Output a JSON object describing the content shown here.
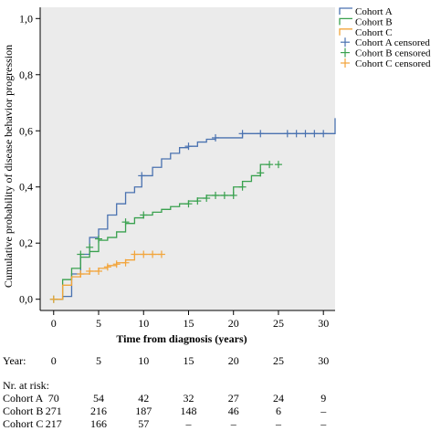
{
  "chart_data": {
    "type": "line",
    "subtype": "kaplan-meier step curve",
    "title": "",
    "xlabel": "Time from diagnosis (years)",
    "ylabel": "Cumulative probability of disease behavior progression",
    "xlim": [
      -1.5,
      31.3
    ],
    "ylim": [
      -0.04,
      1.04
    ],
    "x_ticks": [
      0,
      5,
      10,
      15,
      20,
      25,
      30
    ],
    "y_ticks": [
      "0,0",
      "0,2",
      "0,4",
      "0,6",
      "0,8",
      "1,0"
    ],
    "y_tick_values": [
      0.0,
      0.2,
      0.4,
      0.6,
      0.8,
      1.0
    ],
    "plot_background": "#ebebeb",
    "grid": false,
    "legend_position": "top-right-outside",
    "legend": [
      {
        "label": "Cohort A",
        "kind": "line",
        "color": "#4a72b0"
      },
      {
        "label": "Cohort B",
        "kind": "line",
        "color": "#3aa14f"
      },
      {
        "label": "Cohort C",
        "kind": "line",
        "color": "#f2a43a"
      },
      {
        "label": "Cohort A censored",
        "kind": "cross",
        "color": "#4a72b0"
      },
      {
        "label": "Cohort B censored",
        "kind": "cross",
        "color": "#3aa14f"
      },
      {
        "label": "Cohort C censored",
        "kind": "cross",
        "color": "#f2a43a"
      }
    ],
    "series": [
      {
        "name": "Cohort A",
        "color": "#4a72b0",
        "steps": [
          [
            0,
            0
          ],
          [
            1,
            0.01
          ],
          [
            2,
            0.09
          ],
          [
            3,
            0.16
          ],
          [
            4,
            0.22
          ],
          [
            5,
            0.25
          ],
          [
            6,
            0.3
          ],
          [
            7,
            0.34
          ],
          [
            8,
            0.38
          ],
          [
            9,
            0.4
          ],
          [
            9.8,
            0.44
          ],
          [
            11,
            0.47
          ],
          [
            12,
            0.5
          ],
          [
            13,
            0.52
          ],
          [
            14,
            0.54
          ],
          [
            15,
            0.545
          ],
          [
            16,
            0.56
          ],
          [
            17,
            0.57
          ],
          [
            18,
            0.575
          ],
          [
            21,
            0.59
          ],
          [
            31,
            0.59
          ],
          [
            31.3,
            0.645
          ]
        ],
        "censored": [
          [
            9.8,
            0.44
          ],
          [
            15,
            0.545
          ],
          [
            18,
            0.575
          ],
          [
            21,
            0.59
          ],
          [
            23,
            0.59
          ],
          [
            26,
            0.59
          ],
          [
            27,
            0.59
          ],
          [
            28,
            0.59
          ],
          [
            29,
            0.59
          ],
          [
            30,
            0.59
          ]
        ]
      },
      {
        "name": "Cohort B",
        "color": "#3aa14f",
        "steps": [
          [
            0,
            0
          ],
          [
            1,
            0.07
          ],
          [
            2,
            0.11
          ],
          [
            3,
            0.15
          ],
          [
            4,
            0.17
          ],
          [
            5,
            0.21
          ],
          [
            6,
            0.22
          ],
          [
            7,
            0.24
          ],
          [
            8,
            0.27
          ],
          [
            9,
            0.29
          ],
          [
            10,
            0.3
          ],
          [
            11,
            0.31
          ],
          [
            12,
            0.32
          ],
          [
            13,
            0.33
          ],
          [
            14,
            0.34
          ],
          [
            15,
            0.35
          ],
          [
            16,
            0.36
          ],
          [
            17,
            0.37
          ],
          [
            20,
            0.4
          ],
          [
            21,
            0.42
          ],
          [
            22,
            0.44
          ],
          [
            23,
            0.48
          ],
          [
            24,
            0.48
          ]
        ],
        "censored": [
          [
            0,
            0
          ],
          [
            3,
            0.16
          ],
          [
            4,
            0.185
          ],
          [
            5,
            0.215
          ],
          [
            8,
            0.275
          ],
          [
            10,
            0.3
          ],
          [
            15,
            0.34
          ],
          [
            16,
            0.35
          ],
          [
            17,
            0.36
          ],
          [
            18,
            0.37
          ],
          [
            19,
            0.37
          ],
          [
            20,
            0.37
          ],
          [
            21,
            0.4
          ],
          [
            23,
            0.45
          ],
          [
            24,
            0.48
          ],
          [
            25,
            0.48
          ]
        ]
      },
      {
        "name": "Cohort C",
        "color": "#f2a43a",
        "steps": [
          [
            0,
            0
          ],
          [
            1,
            0.05
          ],
          [
            2,
            0.08
          ],
          [
            3,
            0.09
          ],
          [
            4,
            0.1
          ],
          [
            5,
            0.11
          ],
          [
            6,
            0.12
          ],
          [
            7,
            0.13
          ],
          [
            8,
            0.14
          ],
          [
            9,
            0.16
          ],
          [
            12,
            0.16
          ]
        ],
        "censored": [
          [
            0,
            0
          ],
          [
            3,
            0.09
          ],
          [
            4,
            0.1
          ],
          [
            5,
            0.1
          ],
          [
            6,
            0.115
          ],
          [
            7,
            0.125
          ],
          [
            8,
            0.13
          ],
          [
            9,
            0.16
          ],
          [
            10,
            0.16
          ],
          [
            11,
            0.16
          ],
          [
            12,
            0.16
          ]
        ]
      }
    ]
  },
  "risk_table": {
    "year_label": "Year:",
    "years": [
      "0",
      "5",
      "10",
      "15",
      "20",
      "25",
      "30"
    ],
    "title": "Nr. at risk:",
    "rows": [
      {
        "label": "Cohort A",
        "values": [
          "70",
          "54",
          "42",
          "32",
          "27",
          "24",
          "9"
        ]
      },
      {
        "label": "Cohort B",
        "values": [
          "271",
          "216",
          "187",
          "148",
          "46",
          "6",
          "–"
        ]
      },
      {
        "label": "Cohort C",
        "values": [
          "217",
          "166",
          "57",
          "–",
          "–",
          "–",
          "–"
        ]
      }
    ]
  }
}
